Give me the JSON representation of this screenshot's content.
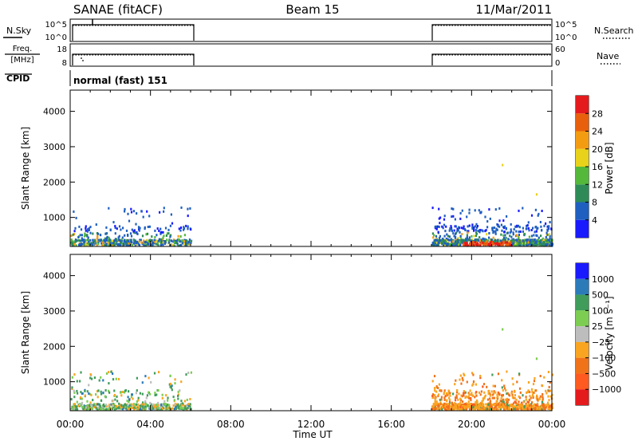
{
  "header": {
    "site": "SANAE (fitACF)",
    "beam": "Beam 15",
    "date": "11/Mar/2011"
  },
  "panels": {
    "nsky": {
      "label": "N.Sky",
      "ticks": [
        "10^5",
        "10^0"
      ]
    },
    "nsearch": {
      "label": "N.Search",
      "ticks": [
        "10^5",
        "10^0"
      ],
      "legend_style": "dotted"
    },
    "freq": {
      "label_line1": "Freq.",
      "label_line2": "[MHz]",
      "ticks": [
        "18",
        "8"
      ]
    },
    "nave": {
      "label": "Nave",
      "ticks": [
        "60",
        "0"
      ],
      "legend_style": "dotted"
    },
    "cpid": {
      "label": "CPID",
      "value": "normal (fast) 151"
    }
  },
  "colors": {
    "power": [
      "#1a1aff",
      "#1f5fbf",
      "#2e8b57",
      "#54b83b",
      "#e8d21a",
      "#f39c12",
      "#e8600c",
      "#e41a1c"
    ],
    "velocity": [
      "#e41a1c",
      "#ff5a1f",
      "#f0731a",
      "#f9a521",
      "#bdbdbd",
      "#7ccd52",
      "#3f9c5a",
      "#2b7bb9",
      "#1a1aff"
    ]
  },
  "chart_data": [
    {
      "type": "heatmap",
      "title": "",
      "xlabel": "",
      "ylabel": "Slant Range [km]",
      "x_ticks": [
        "00:00",
        "04:00",
        "08:00",
        "12:00",
        "16:00",
        "20:00",
        "00:00"
      ],
      "xlim_hours": [
        0,
        24
      ],
      "y_ticks": [
        1000,
        2000,
        3000,
        4000
      ],
      "ylim": [
        180,
        4600
      ],
      "colorbar_label": "Power [dB]",
      "colorbar_ticks": [
        "4",
        "8",
        "12",
        "16",
        "20",
        "24",
        "28"
      ],
      "scatter_windows_hours": [
        [
          0,
          6
        ],
        [
          18,
          24
        ]
      ],
      "typical_range_km": [
        180,
        1300
      ],
      "isolated_returns": [
        {
          "hour": 21.5,
          "range_km": 2480
        },
        {
          "hour": 23.2,
          "range_km": 1650
        }
      ]
    },
    {
      "type": "heatmap",
      "title": "",
      "xlabel": "Time UT",
      "ylabel": "Slant Range [km]",
      "x_ticks": [
        "00:00",
        "04:00",
        "08:00",
        "12:00",
        "16:00",
        "20:00",
        "00:00"
      ],
      "xlim_hours": [
        0,
        24
      ],
      "y_ticks": [
        1000,
        2000,
        3000,
        4000
      ],
      "ylim": [
        180,
        4600
      ],
      "colorbar_label": "Velocity [m s⁻¹]",
      "colorbar_ticks": [
        "1000",
        "500",
        "100",
        "25",
        "−25",
        "−100",
        "−500",
        "−1000"
      ],
      "scatter_windows_hours": [
        [
          0,
          6
        ],
        [
          18,
          24
        ]
      ],
      "typical_range_km": [
        180,
        1300
      ],
      "isolated_returns": [
        {
          "hour": 21.5,
          "range_km": 2480
        },
        {
          "hour": 23.2,
          "range_km": 1650
        }
      ]
    }
  ]
}
